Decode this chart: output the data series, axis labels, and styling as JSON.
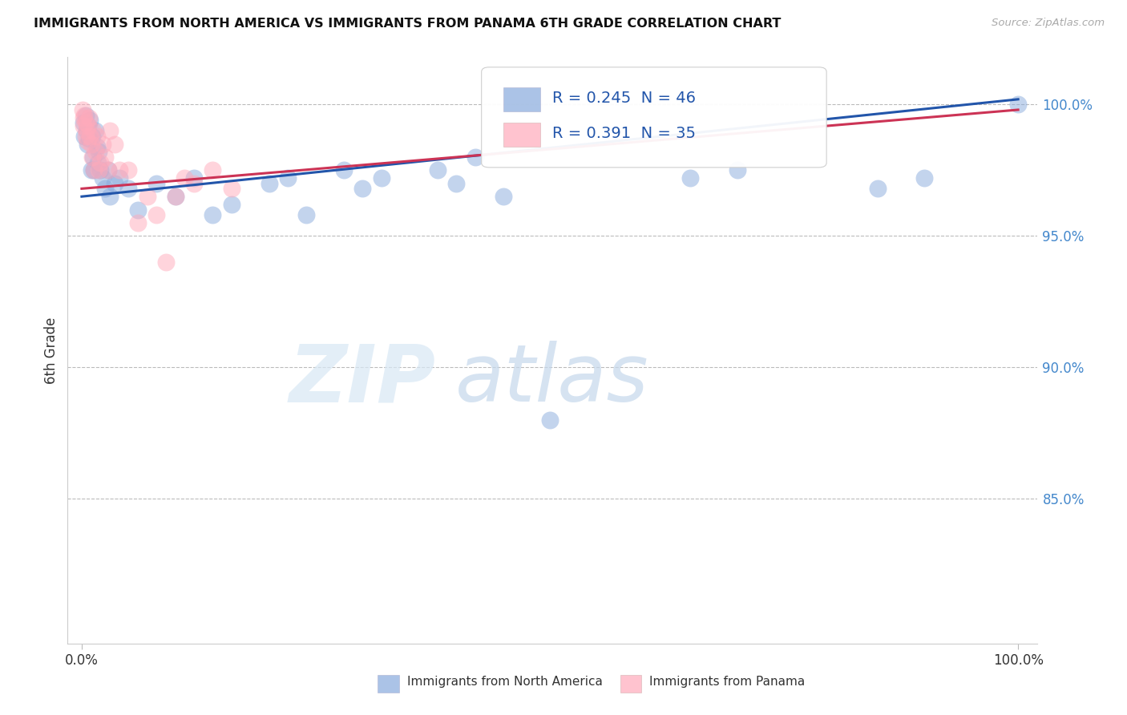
{
  "title": "IMMIGRANTS FROM NORTH AMERICA VS IMMIGRANTS FROM PANAMA 6TH GRADE CORRELATION CHART",
  "source_text": "Source: ZipAtlas.com",
  "ylabel": "6th Grade",
  "legend_label_blue": "Immigrants from North America",
  "legend_label_pink": "Immigrants from Panama",
  "blue_color": "#88AADD",
  "pink_color": "#FFaaBB",
  "blue_line_color": "#2255AA",
  "pink_line_color": "#CC3355",
  "R_blue": 0.245,
  "N_blue": 46,
  "R_pink": 0.391,
  "N_pink": 35,
  "ytick_labels": [
    "85.0%",
    "90.0%",
    "95.0%",
    "100.0%"
  ],
  "yticks": [
    0.85,
    0.9,
    0.95,
    1.0
  ],
  "xticks": [
    0.0,
    1.0
  ],
  "xtick_labels": [
    "0.0%",
    "100.0%"
  ],
  "blue_x": [
    0.002,
    0.003,
    0.004,
    0.005,
    0.006,
    0.007,
    0.008,
    0.009,
    0.01,
    0.011,
    0.012,
    0.013,
    0.015,
    0.016,
    0.017,
    0.018,
    0.02,
    0.022,
    0.025,
    0.028,
    0.03,
    0.035,
    0.04,
    0.05,
    0.06,
    0.08,
    0.1,
    0.12,
    0.14,
    0.16,
    0.2,
    0.22,
    0.24,
    0.28,
    0.3,
    0.32,
    0.38,
    0.4,
    0.42,
    0.45,
    0.5,
    0.65,
    0.7,
    0.85,
    0.9,
    1.0
  ],
  "blue_y": [
    0.993,
    0.988,
    0.996,
    0.99,
    0.985,
    0.992,
    0.987,
    0.994,
    0.975,
    0.988,
    0.98,
    0.975,
    0.99,
    0.984,
    0.978,
    0.982,
    0.975,
    0.972,
    0.968,
    0.975,
    0.965,
    0.97,
    0.972,
    0.968,
    0.96,
    0.97,
    0.965,
    0.972,
    0.958,
    0.962,
    0.97,
    0.972,
    0.958,
    0.975,
    0.968,
    0.972,
    0.975,
    0.97,
    0.98,
    0.965,
    0.88,
    0.972,
    0.975,
    0.968,
    0.972,
    1.0
  ],
  "pink_x": [
    0.001,
    0.002,
    0.002,
    0.003,
    0.004,
    0.004,
    0.005,
    0.006,
    0.007,
    0.008,
    0.009,
    0.01,
    0.011,
    0.012,
    0.013,
    0.015,
    0.016,
    0.018,
    0.02,
    0.022,
    0.025,
    0.028,
    0.03,
    0.035,
    0.04,
    0.05,
    0.06,
    0.07,
    0.08,
    0.09,
    0.1,
    0.11,
    0.12,
    0.14,
    0.16
  ],
  "pink_y": [
    0.998,
    0.995,
    0.992,
    0.996,
    0.993,
    0.988,
    0.99,
    0.986,
    0.992,
    0.995,
    0.988,
    0.985,
    0.98,
    0.99,
    0.975,
    0.982,
    0.988,
    0.975,
    0.978,
    0.985,
    0.98,
    0.975,
    0.99,
    0.985,
    0.975,
    0.975,
    0.955,
    0.965,
    0.958,
    0.94,
    0.965,
    0.972,
    0.97,
    0.975,
    0.968
  ]
}
